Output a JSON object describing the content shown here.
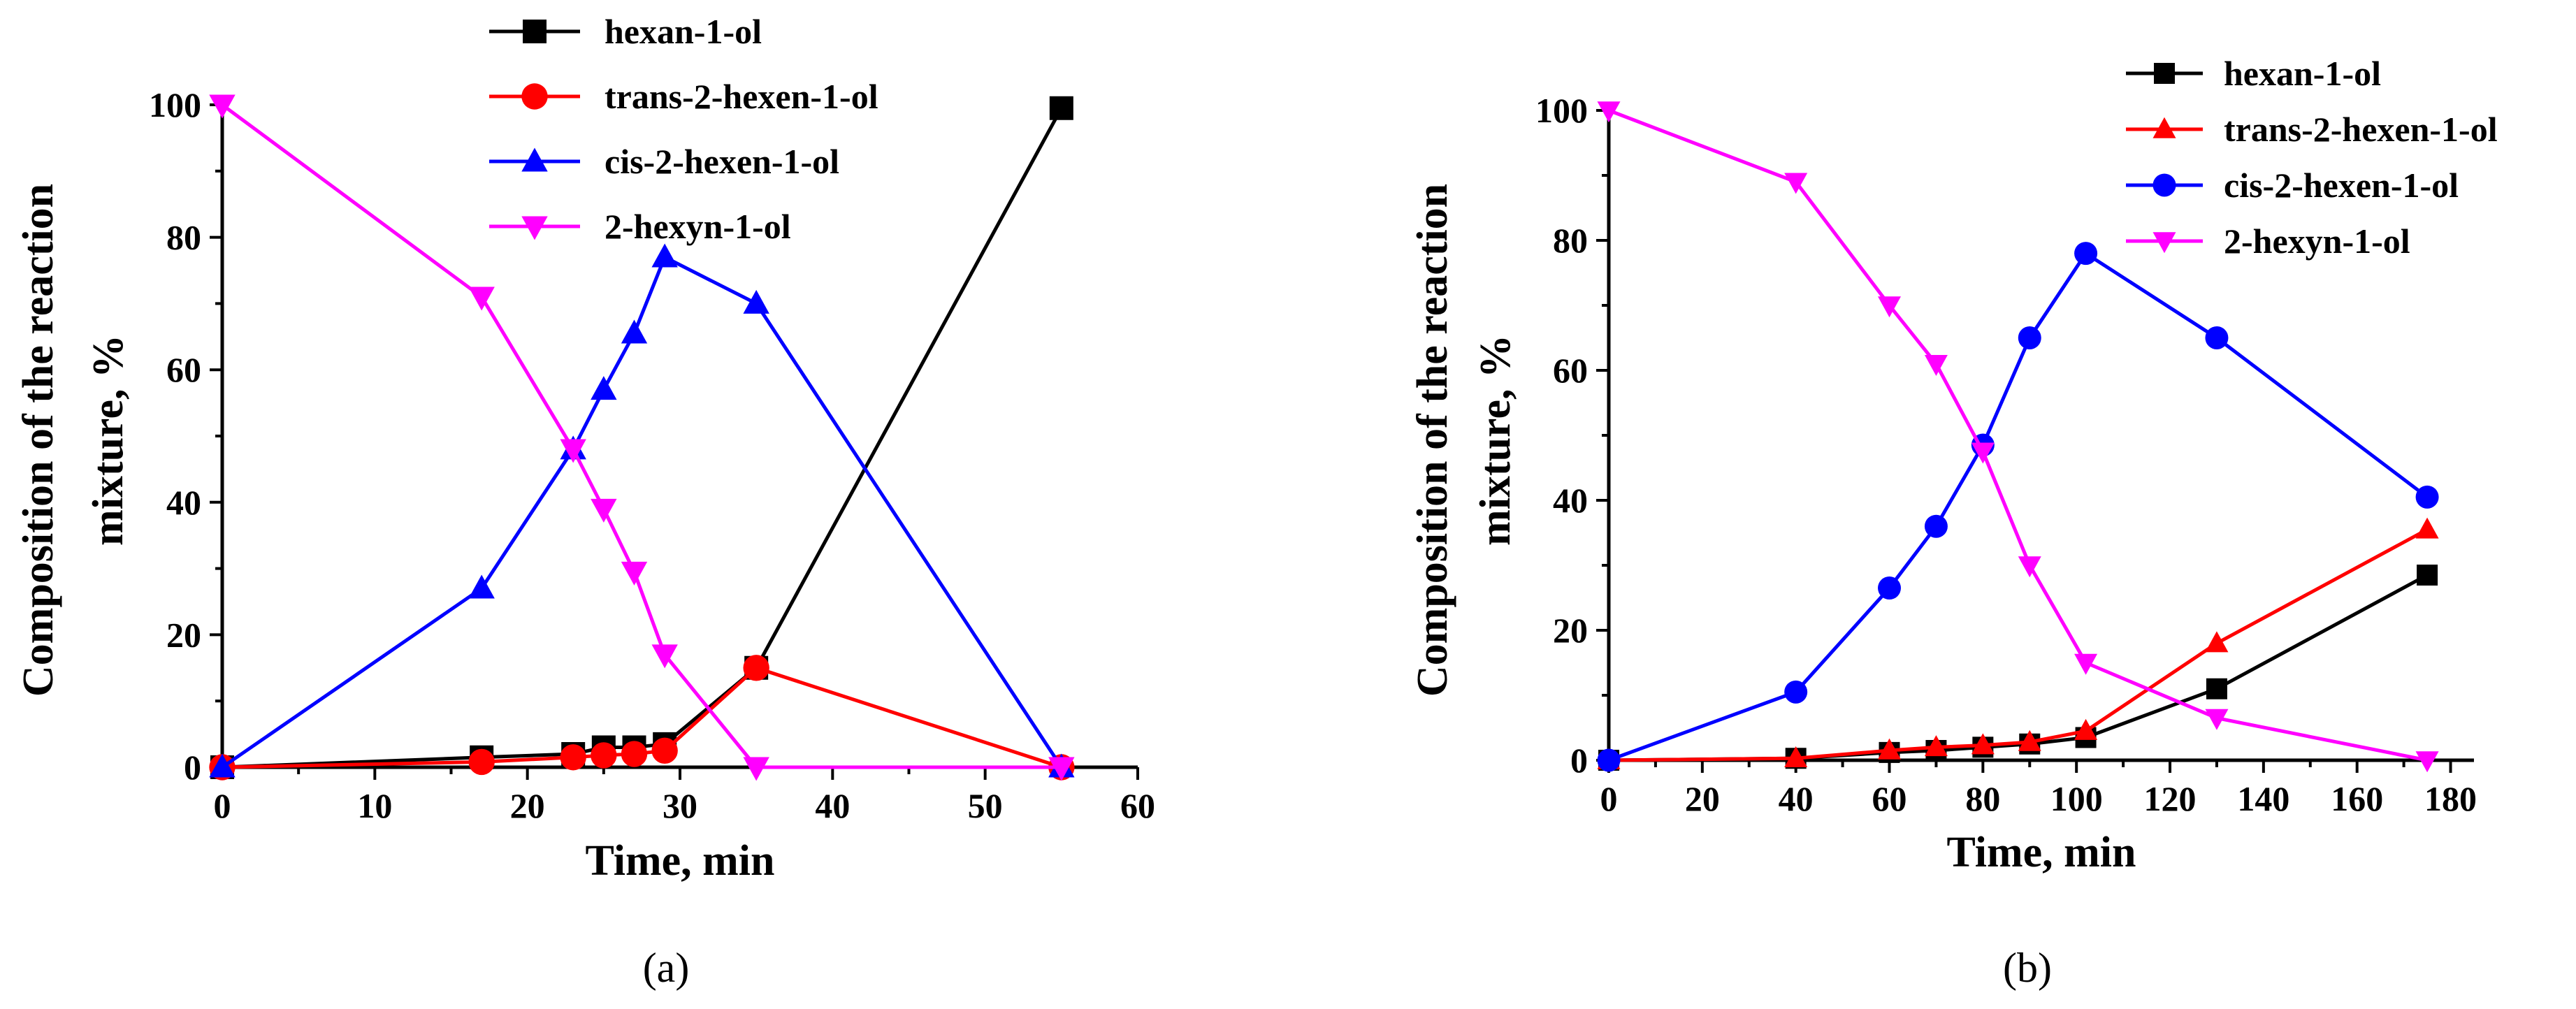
{
  "chart_data": [
    {
      "type": "line",
      "panel_label": "(a)",
      "xlabel": "Time, min",
      "ylabel_line1": "Composition of the reaction",
      "ylabel_line2": "mixture, %",
      "xlim": [
        0,
        60
      ],
      "ylim": [
        0,
        100
      ],
      "xticks": [
        0,
        10,
        20,
        30,
        40,
        50,
        60
      ],
      "yticks": [
        0,
        20,
        40,
        60,
        80,
        100
      ],
      "legend_position": "top-center",
      "series": [
        {
          "name": "hexan-1-ol",
          "color": "#000000",
          "marker": "square",
          "x": [
            0,
            17,
            23,
            25,
            27,
            29,
            35,
            55
          ],
          "y": [
            0,
            1.5,
            2,
            3,
            3,
            3.5,
            15,
            99.5
          ]
        },
        {
          "name": "trans-2-hexen-1-ol",
          "color": "#ff0000",
          "marker": "circle",
          "x": [
            0,
            17,
            23,
            25,
            27,
            29,
            35,
            55
          ],
          "y": [
            0,
            0.8,
            1.5,
            1.8,
            2,
            2.5,
            15,
            0
          ]
        },
        {
          "name": "cis-2-hexen-1-ol",
          "color": "#0000ff",
          "marker": "triangle-up",
          "x": [
            0,
            17,
            23,
            25,
            27,
            29,
            35,
            55
          ],
          "y": [
            0,
            27,
            48,
            57,
            65.5,
            77,
            70,
            0
          ]
        },
        {
          "name": "2-hexyn-1-ol",
          "color": "#ff00ff",
          "marker": "triangle-down",
          "x": [
            0,
            17,
            23,
            25,
            27,
            29,
            35,
            55
          ],
          "y": [
            100,
            71,
            48,
            39,
            29.5,
            17,
            0,
            0
          ]
        }
      ]
    },
    {
      "type": "line",
      "panel_label": "(b)",
      "xlabel": "Time, min",
      "ylabel_line1": "Composition of the reaction",
      "ylabel_line2": "mixture, %",
      "xlim": [
        0,
        185
      ],
      "ylim": [
        0,
        100
      ],
      "xticks": [
        0,
        20,
        40,
        60,
        80,
        100,
        120,
        140,
        160,
        180
      ],
      "yticks": [
        0,
        20,
        40,
        60,
        80,
        100
      ],
      "legend_position": "top-right",
      "series": [
        {
          "name": "hexan-1-ol",
          "color": "#000000",
          "marker": "square",
          "x": [
            0,
            40,
            60,
            70,
            80,
            90,
            102,
            130,
            175
          ],
          "y": [
            0,
            0.3,
            1.2,
            1.5,
            2,
            2.5,
            3.5,
            11,
            28.5
          ]
        },
        {
          "name": "trans-2-hexen-1-ol",
          "color": "#ff0000",
          "marker": "triangle-up",
          "x": [
            0,
            40,
            60,
            70,
            80,
            90,
            102,
            130,
            175
          ],
          "y": [
            0,
            0.3,
            1.5,
            2,
            2.3,
            2.8,
            4.5,
            18,
            35.5
          ]
        },
        {
          "name": "cis-2-hexen-1-ol",
          "color": "#0000ff",
          "marker": "circle",
          "x": [
            0,
            40,
            60,
            70,
            80,
            90,
            102,
            130,
            175
          ],
          "y": [
            0,
            10.5,
            26.5,
            36,
            48.5,
            65,
            78,
            65,
            40.5
          ]
        },
        {
          "name": "2-hexyn-1-ol",
          "color": "#ff00ff",
          "marker": "triangle-down",
          "x": [
            0,
            40,
            60,
            70,
            80,
            90,
            102,
            130,
            175
          ],
          "y": [
            100,
            89,
            70,
            61,
            47.5,
            30,
            15,
            6.5,
            0
          ]
        }
      ]
    }
  ]
}
